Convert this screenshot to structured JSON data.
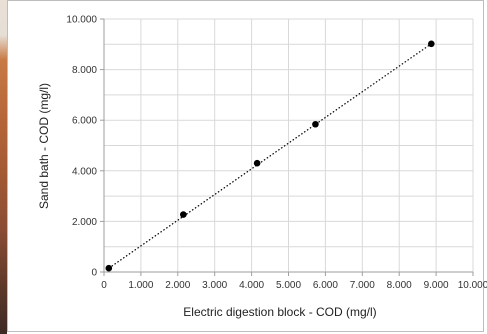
{
  "chart_data": {
    "type": "scatter",
    "title": "",
    "xlabel": "Electric digestion block - COD (mg/l)",
    "ylabel": "Sand bath - COD (mg/l)",
    "xlim": [
      0,
      10000
    ],
    "ylim": [
      0,
      10000
    ],
    "x_tick_labels": [
      "0",
      "1.000",
      "2.000",
      "3.000",
      "4.000",
      "5.000",
      "6.000",
      "7.000",
      "8.000",
      "9.000",
      "10.000"
    ],
    "y_tick_labels": [
      "0",
      "2.000",
      "4.000",
      "6.000",
      "8.000",
      "10.000"
    ],
    "x_ticks": [
      0,
      1000,
      2000,
      3000,
      4000,
      5000,
      6000,
      7000,
      8000,
      9000,
      10000
    ],
    "y_ticks": [
      0,
      2000,
      4000,
      6000,
      8000,
      10000
    ],
    "grid": true,
    "legend": "none",
    "points": [
      {
        "x": 130,
        "y": 150
      },
      {
        "x": 2150,
        "y": 2270
      },
      {
        "x": 4150,
        "y": 4300
      },
      {
        "x": 5730,
        "y": 5840
      },
      {
        "x": 8870,
        "y": 9020
      }
    ],
    "trendline": {
      "style": "dotted",
      "from": {
        "x": 130,
        "y": 150
      },
      "to": {
        "x": 8870,
        "y": 9020
      }
    },
    "colors": {
      "points": "#000000",
      "grid": "#d9d9d9",
      "axis": "#9e9e9e",
      "trendline": "#000000"
    }
  }
}
